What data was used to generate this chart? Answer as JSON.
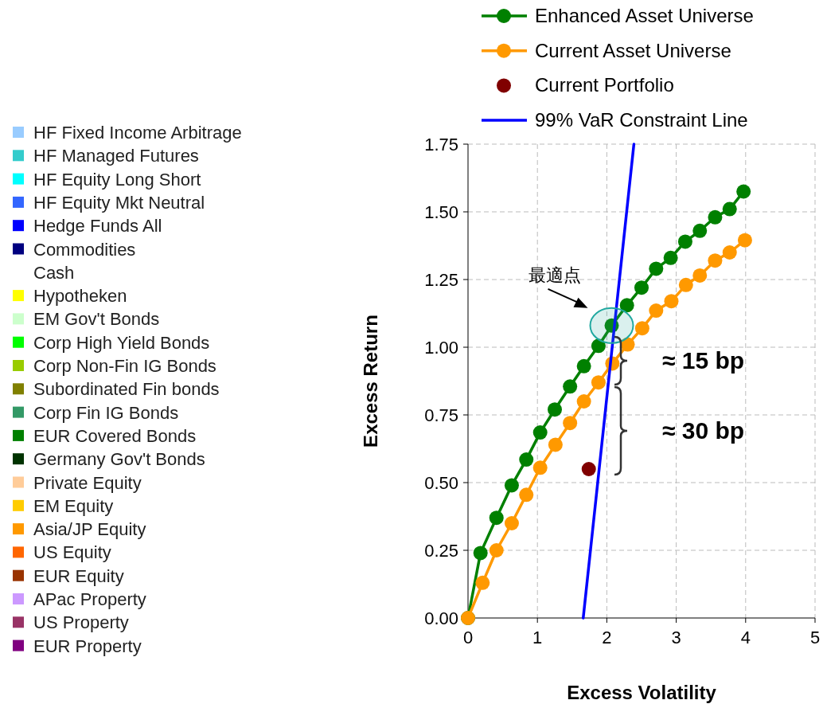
{
  "chart_data": [
    {
      "type": "other",
      "categories": [
        "HF Fixed Income Arbitrage",
        "HF Managed Futures",
        "HF Equity Long Short",
        "HF Equity Mkt Neutral",
        "Hedge Funds All",
        "Commodities",
        "Cash",
        "Hypotheken",
        "EM Gov't Bonds",
        "Corp High Yield Bonds",
        "Corp Non-Fin IG Bonds",
        "Subordinated Fin bonds",
        "Corp Fin IG Bonds",
        "EUR Covered Bonds",
        "Germany Gov't Bonds",
        "Private Equity",
        "EM Equity",
        "Asia/JP Equity",
        "US Equity",
        "EUR Equity",
        "APac Property",
        "US Property",
        "EUR Property"
      ],
      "colors": [
        "#99ccff",
        "#33cccc",
        "#00ffff",
        "#3366ff",
        "#0000ff",
        "#000080",
        "#ffffff",
        "#ffff00",
        "#ccffcc",
        "#00ff00",
        "#99cc00",
        "#808000",
        "#339966",
        "#008000",
        "#003300",
        "#ffcc99",
        "#ffcc00",
        "#ff9900",
        "#ff6600",
        "#993300",
        "#cc99ff",
        "#993366",
        "#800080"
      ]
    },
    {
      "type": "line",
      "xlabel": "Excess Volatility",
      "ylabel": "Excess Return",
      "xlim": [
        0,
        5
      ],
      "xticks": [
        0,
        1,
        2,
        3,
        4,
        5
      ],
      "ylim": [
        0,
        1.75
      ],
      "yticks": [
        {
          "value": 0,
          "label": "0.00"
        },
        {
          "value": 0.25,
          "label": "0.25"
        },
        {
          "value": 0.5,
          "label": "0.50"
        },
        {
          "value": 0.75,
          "label": "0.75"
        },
        {
          "value": 1,
          "label": "1.00"
        },
        {
          "value": 1.25,
          "label": "1.25"
        },
        {
          "value": 1.5,
          "label": "1.50"
        },
        {
          "value": 1.75,
          "label": "1.75"
        }
      ],
      "grid": true,
      "legend": "top",
      "series": [
        {
          "name": "Enhanced Asset Universe",
          "type": "line",
          "marker": "circle",
          "color": "#008000",
          "x": [
            0,
            0.18,
            0.41,
            0.63,
            0.84,
            1.04,
            1.25,
            1.47,
            1.67,
            1.88,
            2.07,
            2.29,
            2.5,
            2.71,
            2.92,
            3.13,
            3.34,
            3.56,
            3.77,
            3.97
          ],
          "values": [
            0,
            0.24,
            0.37,
            0.49,
            0.585,
            0.685,
            0.77,
            0.855,
            0.93,
            1.005,
            1.08,
            1.155,
            1.22,
            1.29,
            1.33,
            1.39,
            1.43,
            1.48,
            1.51,
            1.575
          ]
        },
        {
          "name": "Current Asset Universe",
          "type": "line",
          "marker": "circle",
          "color": "#ff9900",
          "x": [
            0,
            0.21,
            0.41,
            0.63,
            0.84,
            1.04,
            1.26,
            1.47,
            1.67,
            1.88,
            2.08,
            2.3,
            2.51,
            2.71,
            2.93,
            3.14,
            3.34,
            3.56,
            3.77,
            3.99
          ],
          "values": [
            0,
            0.13,
            0.25,
            0.35,
            0.455,
            0.555,
            0.64,
            0.72,
            0.8,
            0.87,
            0.94,
            1.01,
            1.07,
            1.135,
            1.17,
            1.23,
            1.265,
            1.32,
            1.35,
            1.395
          ]
        },
        {
          "name": "Current Portfolio",
          "type": "scatter",
          "marker": "circle",
          "color": "#800000",
          "x": [
            1.74
          ],
          "values": [
            0.55
          ]
        },
        {
          "name": "99% VaR Constraint Line",
          "type": "line",
          "marker": "none",
          "color": "#0000ff",
          "x": [
            1.66,
            2.39
          ],
          "values": [
            0,
            1.75
          ]
        }
      ],
      "annotations": [
        {
          "text": "最適点",
          "x": 2.07,
          "y": 1.08
        },
        "≈ 15 bp",
        "≈ 30 bp"
      ]
    }
  ]
}
